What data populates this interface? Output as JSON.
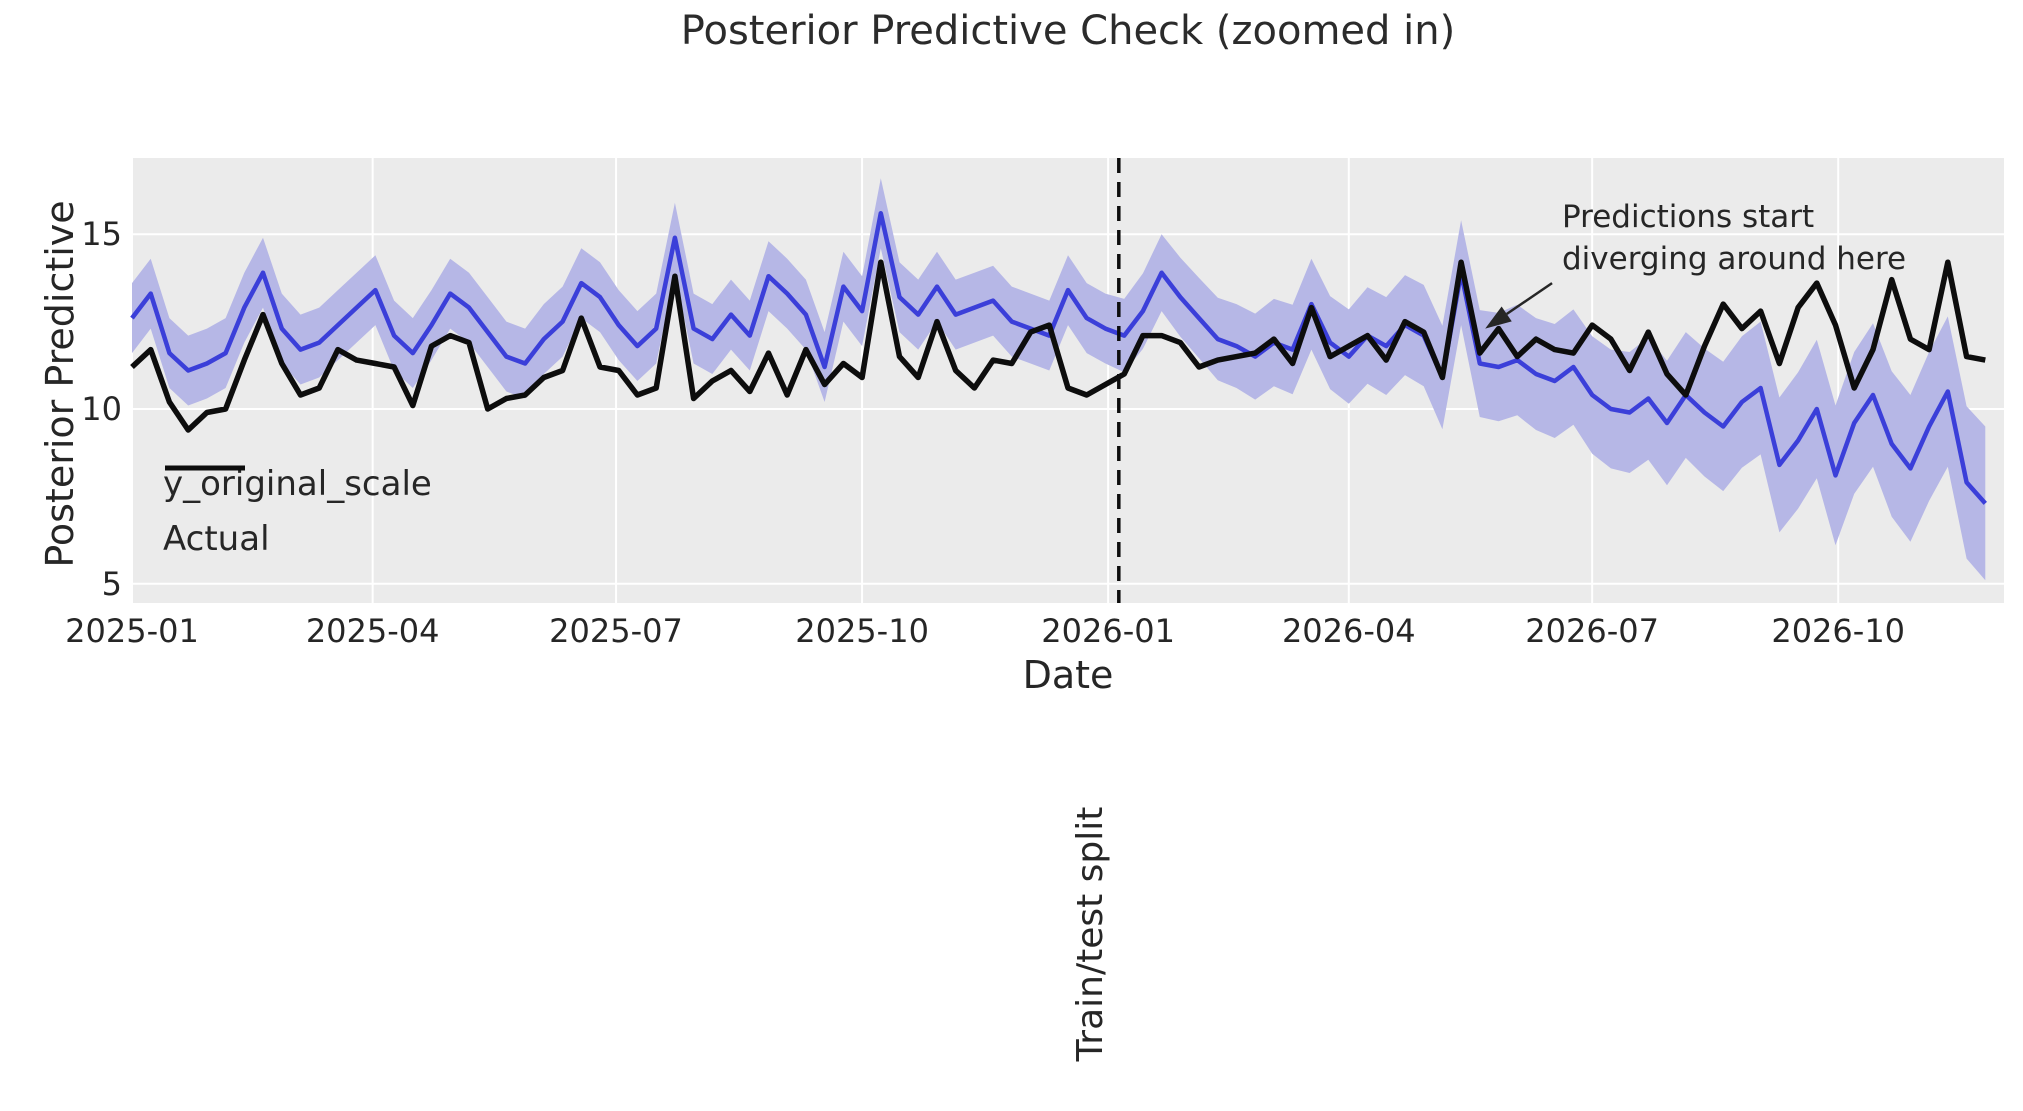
{
  "title": "Posterior Predictive Check (zoomed in)",
  "axes": {
    "xlabel": "Date",
    "ylabel": "Posterior Predictive",
    "xticks": [
      {
        "label": "2025-01",
        "date": "2025-01-01"
      },
      {
        "label": "2025-04",
        "date": "2025-04-01"
      },
      {
        "label": "2025-07",
        "date": "2025-07-01"
      },
      {
        "label": "2025-10",
        "date": "2025-10-01"
      },
      {
        "label": "2026-01",
        "date": "2026-01-01"
      },
      {
        "label": "2026-04",
        "date": "2026-04-01"
      },
      {
        "label": "2026-07",
        "date": "2026-07-01"
      },
      {
        "label": "2026-10",
        "date": "2026-10-01"
      }
    ],
    "yticks": [
      {
        "label": "5",
        "value": 5
      },
      {
        "label": "10",
        "value": 10
      },
      {
        "label": "15",
        "value": 15
      }
    ]
  },
  "legend": [
    {
      "label": "y_original_scale",
      "color": "#3b3fd9"
    },
    {
      "label": "Actual",
      "color": "#0d0d0d"
    }
  ],
  "annotations": {
    "diverge": {
      "line1": "Predictions start",
      "line2": "diverging around here",
      "arrow_tip": {
        "date": "2026-05-22",
        "value": 12.3
      },
      "arrow_tail": {
        "date": "2026-06-16",
        "value": 13.6
      }
    },
    "split": {
      "label": "Train/test split",
      "date": "2026-01-05"
    }
  },
  "colors": {
    "predicted_line": "#3b3fd9",
    "uncertainty_band": "#b6b7e6",
    "actual_line": "#0d0d0d",
    "plot_background": "#ebebeb",
    "grid": "#ffffff",
    "text": "#262626"
  },
  "chart_data": {
    "type": "line",
    "title": "Posterior Predictive Check (zoomed in)",
    "xlabel": "Date",
    "ylabel": "Posterior Predictive",
    "x_start": "2025-01-01",
    "x_span_days": 700,
    "ylim": [
      4.45,
      17.18
    ],
    "grid": true,
    "legend_position": "lower left",
    "x_dates": [
      "2025-01-01",
      "2025-01-08",
      "2025-01-15",
      "2025-01-22",
      "2025-01-29",
      "2025-02-05",
      "2025-02-12",
      "2025-02-19",
      "2025-02-26",
      "2025-03-05",
      "2025-03-12",
      "2025-03-19",
      "2025-03-26",
      "2025-04-02",
      "2025-04-09",
      "2025-04-16",
      "2025-04-23",
      "2025-04-30",
      "2025-05-07",
      "2025-05-14",
      "2025-05-21",
      "2025-05-28",
      "2025-06-04",
      "2025-06-11",
      "2025-06-18",
      "2025-06-25",
      "2025-07-02",
      "2025-07-09",
      "2025-07-16",
      "2025-07-23",
      "2025-07-30",
      "2025-08-06",
      "2025-08-13",
      "2025-08-20",
      "2025-08-27",
      "2025-09-03",
      "2025-09-10",
      "2025-09-17",
      "2025-09-24",
      "2025-10-01",
      "2025-10-08",
      "2025-10-15",
      "2025-10-22",
      "2025-10-29",
      "2025-11-05",
      "2025-11-12",
      "2025-11-19",
      "2025-11-26",
      "2025-12-03",
      "2025-12-10",
      "2025-12-17",
      "2025-12-24",
      "2025-12-31",
      "2026-01-07",
      "2026-01-14",
      "2026-01-21",
      "2026-01-28",
      "2026-02-04",
      "2026-02-11",
      "2026-02-18",
      "2026-02-25",
      "2026-03-04",
      "2026-03-11",
      "2026-03-18",
      "2026-03-25",
      "2026-04-01",
      "2026-04-08",
      "2026-04-15",
      "2026-04-22",
      "2026-04-29",
      "2026-05-06",
      "2026-05-13",
      "2026-05-20",
      "2026-05-27",
      "2026-06-03",
      "2026-06-10",
      "2026-06-17",
      "2026-06-24",
      "2026-07-01",
      "2026-07-08",
      "2026-07-15",
      "2026-07-22",
      "2026-07-29",
      "2026-08-05",
      "2026-08-12",
      "2026-08-19",
      "2026-08-26",
      "2026-09-02",
      "2026-09-09",
      "2026-09-16",
      "2026-09-23",
      "2026-09-30",
      "2026-10-07",
      "2026-10-14",
      "2026-10-21",
      "2026-10-28",
      "2026-11-04",
      "2026-11-11",
      "2026-11-18",
      "2026-11-25"
    ],
    "series": [
      {
        "name": "y_original_scale",
        "values": [
          12.6,
          13.3,
          11.6,
          11.1,
          11.3,
          11.6,
          12.9,
          13.9,
          12.3,
          11.7,
          11.9,
          12.4,
          12.9,
          13.4,
          12.1,
          11.6,
          12.4,
          13.3,
          12.9,
          12.2,
          11.5,
          11.3,
          12.0,
          12.5,
          13.6,
          13.2,
          12.4,
          11.8,
          12.3,
          14.9,
          12.3,
          12.0,
          12.7,
          12.1,
          13.8,
          13.3,
          12.7,
          11.2,
          13.5,
          12.8,
          15.6,
          13.2,
          12.7,
          13.5,
          12.7,
          12.9,
          13.1,
          12.5,
          12.3,
          12.1,
          13.4,
          12.6,
          12.3,
          12.1,
          12.8,
          13.9,
          13.2,
          12.6,
          12.0,
          11.8,
          11.5,
          11.9,
          11.7,
          13.0,
          11.9,
          11.5,
          12.1,
          11.8,
          12.4,
          12.1,
          10.9,
          13.9,
          11.3,
          11.2,
          11.4,
          11.0,
          10.8,
          11.2,
          10.4,
          10.0,
          9.9,
          10.3,
          9.6,
          10.4,
          9.9,
          9.5,
          10.2,
          10.6,
          8.4,
          9.1,
          10.0,
          8.1,
          9.6,
          10.4,
          9.0,
          8.3,
          9.5,
          10.5,
          7.9,
          7.3
        ]
      },
      {
        "name": "Actual",
        "values": [
          11.2,
          11.7,
          10.2,
          9.4,
          9.9,
          10.0,
          11.4,
          12.7,
          11.3,
          10.4,
          10.6,
          11.7,
          11.4,
          11.3,
          11.2,
          10.1,
          11.8,
          12.1,
          11.9,
          10.0,
          10.3,
          10.4,
          10.9,
          11.1,
          12.6,
          11.2,
          11.1,
          10.4,
          10.6,
          13.8,
          10.3,
          10.8,
          11.1,
          10.5,
          11.6,
          10.4,
          11.7,
          10.7,
          11.3,
          10.9,
          14.2,
          11.5,
          10.9,
          12.5,
          11.1,
          10.6,
          11.4,
          11.3,
          12.2,
          12.4,
          10.6,
          10.4,
          10.7,
          11.0,
          12.1,
          12.1,
          11.9,
          11.2,
          11.4,
          11.5,
          11.6,
          12.0,
          11.3,
          12.9,
          11.5,
          11.8,
          12.1,
          11.4,
          12.5,
          12.2,
          10.9,
          14.2,
          11.6,
          12.3,
          11.5,
          12.0,
          11.7,
          11.6,
          12.4,
          12.0,
          11.1,
          12.2,
          11.0,
          10.4,
          11.8,
          13.0,
          12.3,
          12.8,
          11.3,
          12.9,
          13.6,
          12.4,
          10.6,
          11.7,
          13.7,
          12.0,
          11.7,
          14.2,
          11.5,
          11.4
        ]
      }
    ],
    "band": {
      "series": "y_original_scale",
      "halfwidth": [
        1.0,
        1.0,
        1.0,
        1.0,
        1.0,
        1.0,
        1.0,
        1.0,
        1.0,
        1.0,
        1.0,
        1.0,
        1.0,
        1.0,
        1.0,
        1.0,
        1.0,
        1.0,
        1.0,
        1.0,
        1.0,
        1.0,
        1.0,
        1.0,
        1.0,
        1.0,
        1.0,
        1.0,
        1.0,
        1.0,
        1.0,
        1.0,
        1.0,
        1.0,
        1.0,
        1.0,
        1.0,
        1.0,
        1.0,
        1.0,
        1.0,
        1.0,
        1.0,
        1.0,
        1.0,
        1.0,
        1.0,
        1.0,
        1.0,
        1.0,
        1.0,
        1.0,
        1.0,
        1.05,
        1.08,
        1.1,
        1.13,
        1.15,
        1.18,
        1.2,
        1.23,
        1.25,
        1.28,
        1.3,
        1.33,
        1.35,
        1.38,
        1.4,
        1.43,
        1.45,
        1.48,
        1.5,
        1.53,
        1.55,
        1.58,
        1.6,
        1.63,
        1.65,
        1.68,
        1.7,
        1.73,
        1.75,
        1.78,
        1.8,
        1.83,
        1.85,
        1.88,
        1.9,
        1.93,
        1.95,
        1.98,
        2.0,
        2.03,
        2.05,
        2.08,
        2.1,
        2.13,
        2.15,
        2.18,
        2.2
      ]
    }
  }
}
